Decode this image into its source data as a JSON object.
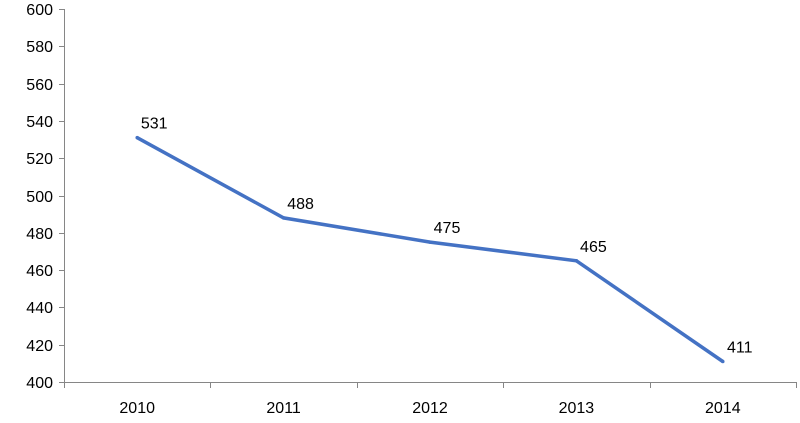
{
  "chart_data": {
    "type": "line",
    "title": "",
    "xlabel": "",
    "ylabel": "",
    "categories": [
      "2010",
      "2011",
      "2012",
      "2013",
      "2014"
    ],
    "series": [
      {
        "values": [
          531,
          488,
          475,
          465,
          411
        ],
        "color": "#4472C4"
      }
    ],
    "ylim": [
      400,
      600
    ],
    "yticks": [
      400,
      420,
      440,
      460,
      480,
      500,
      520,
      540,
      560,
      580,
      600
    ],
    "data_labels": true,
    "grid": false,
    "legend": "none"
  }
}
